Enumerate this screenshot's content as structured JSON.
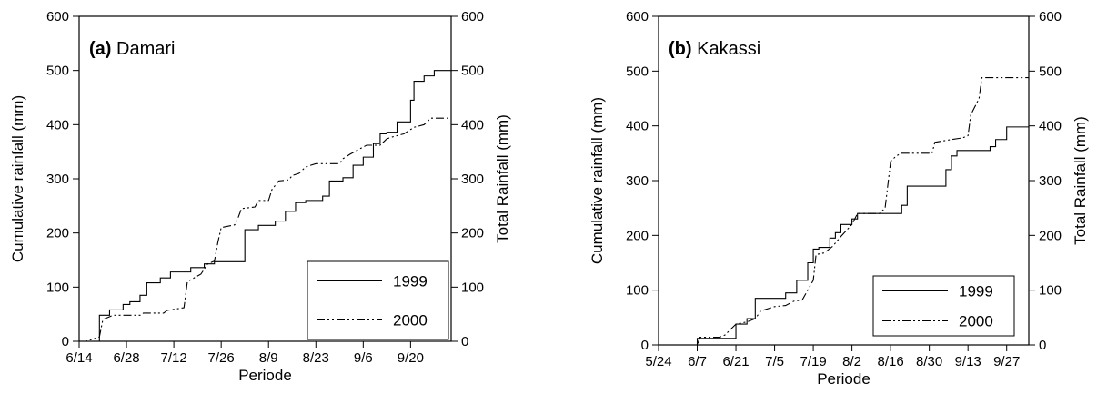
{
  "chart_data": [
    {
      "type": "line",
      "panel_letter": "(a)",
      "title": "Damari",
      "xlabel": "Periode",
      "ylabel_left": "Cumulative rainfall (mm)",
      "ylabel_right": "Total Rainfall (mm)",
      "x_ticks": [
        "6/14",
        "6/28",
        "7/12",
        "7/26",
        "8/9",
        "8/23",
        "9/6",
        "9/20"
      ],
      "x_tick_days": [
        0,
        14,
        28,
        42,
        56,
        70,
        84,
        98
      ],
      "y_ticks": [
        0,
        100,
        200,
        300,
        400,
        500,
        600
      ],
      "xlim": [
        "6/14",
        "10/2"
      ],
      "xlim_days": [
        0,
        110
      ],
      "ylim": [
        0,
        600
      ],
      "legend_position": "bottom-right",
      "series": [
        {
          "name": "1999",
          "style": "solid",
          "points": [
            [
              0,
              0
            ],
            [
              6,
              0
            ],
            [
              6,
              48
            ],
            [
              9,
              48
            ],
            [
              9,
              58
            ],
            [
              13,
              58
            ],
            [
              13,
              68
            ],
            [
              15,
              68
            ],
            [
              15,
              73
            ],
            [
              18,
              73
            ],
            [
              18,
              85
            ],
            [
              20,
              85
            ],
            [
              20,
              108
            ],
            [
              24,
              108
            ],
            [
              24,
              117
            ],
            [
              27,
              117
            ],
            [
              27,
              128
            ],
            [
              33,
              128
            ],
            [
              33,
              136
            ],
            [
              37,
              136
            ],
            [
              37,
              143
            ],
            [
              40,
              143
            ],
            [
              40,
              147
            ],
            [
              49,
              147
            ],
            [
              49,
              206
            ],
            [
              53,
              206
            ],
            [
              53,
              214
            ],
            [
              58,
              214
            ],
            [
              58,
              222
            ],
            [
              61,
              222
            ],
            [
              61,
              240
            ],
            [
              64,
              240
            ],
            [
              64,
              256
            ],
            [
              67,
              256
            ],
            [
              67,
              260
            ],
            [
              72,
              260
            ],
            [
              72,
              268
            ],
            [
              74,
              268
            ],
            [
              74,
              296
            ],
            [
              78,
              296
            ],
            [
              78,
              302
            ],
            [
              81,
              302
            ],
            [
              81,
              325
            ],
            [
              84,
              325
            ],
            [
              84,
              340
            ],
            [
              87,
              340
            ],
            [
              87,
              365
            ],
            [
              89,
              365
            ],
            [
              89,
              383
            ],
            [
              91,
              383
            ],
            [
              91,
              386
            ],
            [
              94,
              386
            ],
            [
              94,
              405
            ],
            [
              98,
              405
            ],
            [
              98,
              445
            ],
            [
              99,
              445
            ],
            [
              99,
              480
            ],
            [
              102,
              480
            ],
            [
              102,
              490
            ],
            [
              105,
              490
            ],
            [
              105,
              500
            ],
            [
              110,
              500
            ]
          ]
        },
        {
          "name": "2000",
          "style": "dash-dot-dot",
          "points": [
            [
              0,
              0
            ],
            [
              2,
              0
            ],
            [
              6,
              8
            ],
            [
              7,
              40
            ],
            [
              10,
              48
            ],
            [
              18,
              48
            ],
            [
              19,
              52
            ],
            [
              25,
              52
            ],
            [
              26,
              57
            ],
            [
              31,
              62
            ],
            [
              32,
              110
            ],
            [
              36,
              124
            ],
            [
              38,
              143
            ],
            [
              40,
              148
            ],
            [
              41,
              182
            ],
            [
              42,
              210
            ],
            [
              46,
              215
            ],
            [
              47,
              228
            ],
            [
              48,
              245
            ],
            [
              52,
              248
            ],
            [
              53,
              260
            ],
            [
              56,
              260
            ],
            [
              57,
              280
            ],
            [
              59,
              296
            ],
            [
              62,
              298
            ],
            [
              63,
              306
            ],
            [
              65,
              310
            ],
            [
              67,
              322
            ],
            [
              70,
              328
            ],
            [
              77,
              328
            ],
            [
              78,
              337
            ],
            [
              80,
              345
            ],
            [
              82,
              352
            ],
            [
              85,
              362
            ],
            [
              89,
              362
            ],
            [
              91,
              374
            ],
            [
              93,
              378
            ],
            [
              96,
              383
            ],
            [
              99,
              395
            ],
            [
              102,
              400
            ],
            [
              104,
              412
            ],
            [
              110,
              412
            ]
          ]
        }
      ]
    },
    {
      "type": "line",
      "panel_letter": "(b)",
      "title": "Kakassi",
      "xlabel": "Periode",
      "ylabel_left": "Cumulative rainfall (mm)",
      "ylabel_right": "Total Rainfall (mm)",
      "x_ticks": [
        "5/24",
        "6/7",
        "6/21",
        "7/5",
        "7/19",
        "8/2",
        "8/16",
        "8/30",
        "9/13",
        "9/27"
      ],
      "x_tick_days": [
        0,
        14,
        28,
        42,
        56,
        70,
        84,
        98,
        112,
        126
      ],
      "y_ticks": [
        0,
        100,
        200,
        300,
        400,
        500,
        600
      ],
      "xlim": [
        "5/24",
        "10/5"
      ],
      "xlim_days": [
        0,
        134
      ],
      "ylim": [
        0,
        600
      ],
      "legend_position": "bottom-right",
      "series": [
        {
          "name": "1999",
          "style": "solid",
          "points": [
            [
              0,
              0
            ],
            [
              14,
              0
            ],
            [
              14,
              12
            ],
            [
              28,
              12
            ],
            [
              28,
              38
            ],
            [
              32,
              38
            ],
            [
              32,
              48
            ],
            [
              35,
              48
            ],
            [
              35,
              85
            ],
            [
              46,
              85
            ],
            [
              46,
              95
            ],
            [
              50,
              95
            ],
            [
              50,
              118
            ],
            [
              54,
              118
            ],
            [
              54,
              150
            ],
            [
              56,
              150
            ],
            [
              56,
              175
            ],
            [
              58,
              175
            ],
            [
              58,
              178
            ],
            [
              62,
              178
            ],
            [
              62,
              195
            ],
            [
              64,
              195
            ],
            [
              64,
              205
            ],
            [
              66,
              205
            ],
            [
              66,
              220
            ],
            [
              70,
              220
            ],
            [
              70,
              230
            ],
            [
              72,
              230
            ],
            [
              72,
              240
            ],
            [
              88,
              240
            ],
            [
              88,
              255
            ],
            [
              90,
              255
            ],
            [
              90,
              290
            ],
            [
              104,
              290
            ],
            [
              104,
              320
            ],
            [
              106,
              320
            ],
            [
              106,
              345
            ],
            [
              108,
              345
            ],
            [
              108,
              355
            ],
            [
              120,
              355
            ],
            [
              120,
              362
            ],
            [
              122,
              362
            ],
            [
              122,
              375
            ],
            [
              126,
              375
            ],
            [
              126,
              398
            ],
            [
              134,
              398
            ]
          ]
        },
        {
          "name": "2000",
          "style": "dash-dot-dot",
          "points": [
            [
              0,
              0
            ],
            [
              14,
              0
            ],
            [
              15,
              14
            ],
            [
              22,
              14
            ],
            [
              24,
              18
            ],
            [
              28,
              38
            ],
            [
              32,
              42
            ],
            [
              35,
              48
            ],
            [
              37,
              62
            ],
            [
              42,
              70
            ],
            [
              46,
              72
            ],
            [
              49,
              80
            ],
            [
              52,
              82
            ],
            [
              56,
              118
            ],
            [
              57,
              165
            ],
            [
              60,
              168
            ],
            [
              63,
              180
            ],
            [
              66,
              198
            ],
            [
              70,
              220
            ],
            [
              72,
              240
            ],
            [
              80,
              240
            ],
            [
              82,
              250
            ],
            [
              84,
              335
            ],
            [
              86,
              345
            ],
            [
              88,
              350
            ],
            [
              99,
              350
            ],
            [
              100,
              370
            ],
            [
              106,
              375
            ],
            [
              110,
              378
            ],
            [
              112,
              382
            ],
            [
              113,
              420
            ],
            [
              116,
              450
            ],
            [
              117,
              488
            ],
            [
              134,
              488
            ]
          ]
        }
      ]
    }
  ]
}
